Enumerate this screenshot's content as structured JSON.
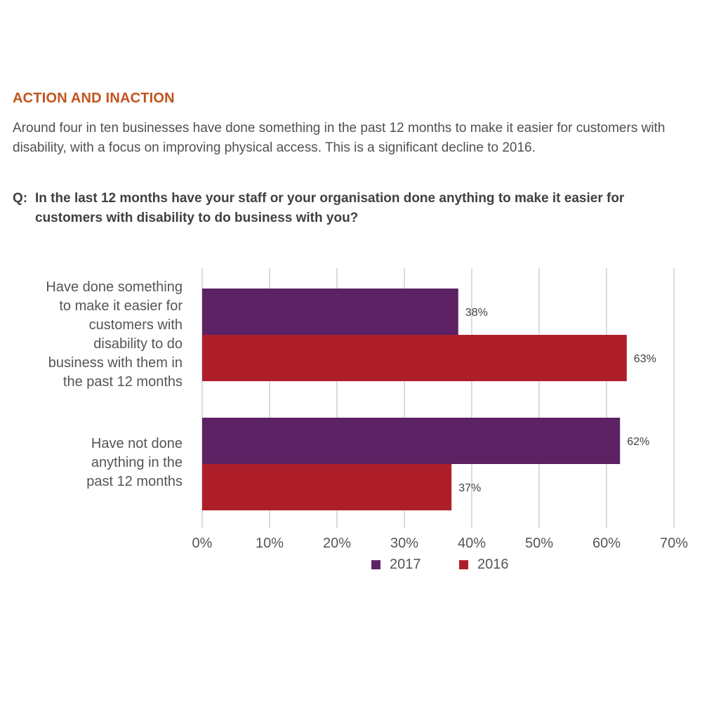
{
  "heading": "ACTION AND INACTION",
  "intro": "Around four in ten businesses have done something in the past 12 months to make it easier for customers with disability, with a focus on improving physical access. This is a significant decline to 2016.",
  "question": {
    "prefix": "Q:",
    "text": "In the last 12 months have your staff or your organisation done anything to make it easier for customers with disability to do business with you?"
  },
  "colors": {
    "2017": "#5c2264",
    "2016": "#ae1e28",
    "heading": "#c4531c"
  },
  "chart_data": {
    "type": "bar",
    "orientation": "horizontal",
    "categories": [
      "Have done something to make it easier for customers with disability to do business with them in the past 12 months",
      "Have not done anything in the past 12 months"
    ],
    "category_lines": [
      [
        "Have done something",
        "to make it easier for",
        "customers with",
        "disability to do",
        "business with them in",
        "the past 12 months"
      ],
      [
        "Have not done",
        "anything in the",
        "past 12 months"
      ]
    ],
    "series": [
      {
        "name": "2017",
        "values": [
          38,
          62
        ],
        "labels": [
          "38%",
          "62%"
        ],
        "color": "#5c2264"
      },
      {
        "name": "2016",
        "values": [
          63,
          37
        ],
        "labels": [
          "63%",
          "37%"
        ],
        "color": "#ae1e28"
      }
    ],
    "xlim": [
      0,
      70
    ],
    "x_ticks": [
      "0%",
      "10%",
      "20%",
      "30%",
      "40%",
      "50%",
      "60%",
      "70%"
    ],
    "grid": true,
    "legend_position": "bottom-center"
  }
}
